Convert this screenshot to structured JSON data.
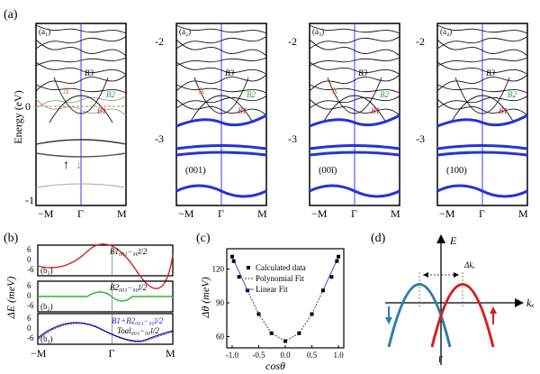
{
  "figure": {
    "panel_a": {
      "label": "(a)",
      "ylabel": "Energy (eV)",
      "left_ticks": [
        "0",
        "-1"
      ],
      "mid_ticks": [
        "-2",
        "-3"
      ],
      "xticks": [
        "−M",
        "Γ",
        "M"
      ],
      "subpanels": [
        {
          "tag": "(a₁)",
          "note": "",
          "delta": "Δ",
          "b3": "B3",
          "b2": "B2",
          "b1": "B1"
        },
        {
          "tag": "(a₂)",
          "note": "(001)",
          "delta": "Δ′",
          "b3": "B3",
          "b2": "B2",
          "b1": "B1"
        },
        {
          "tag": "(a₃)",
          "note": "(00ī)",
          "delta": "Δ′",
          "b3": "B3",
          "b2": "B2",
          "b1": "B1"
        },
        {
          "tag": "(a₄)",
          "note": "(100)",
          "delta": "",
          "b3": "B3",
          "b2": "B2",
          "b1": "B1"
        }
      ]
    },
    "panel_b": {
      "label": "(b)",
      "ylabel": "ΔE (meV)",
      "xticks": [
        "−M",
        "Γ",
        "M"
      ],
      "sub": [
        {
          "tag": "(b₁)",
          "legend": "B1₀₀₁−₀₀ī/2",
          "ticks": [
            "6",
            "0",
            "-6"
          ],
          "color": "#d42020"
        },
        {
          "tag": "(b₂)",
          "legend": "B2₀₀₁−₀₀ī/2",
          "ticks": [
            "6",
            "0",
            "-6"
          ],
          "color": "#22bb22"
        },
        {
          "tag": "(b₃)",
          "legend1": "B1+B2₀₀₁−₀₀ī/2",
          "legend2": "Toal₀₀₁−₀₀ī/2",
          "ticks": [
            "6",
            "0",
            "-6"
          ],
          "color": "#2222cc"
        }
      ]
    },
    "panel_c": {
      "label": "(c)",
      "ylabel": "Δθ (meV)",
      "xlabel": "cosθ",
      "legend": [
        "Calculated data",
        "Polynomial Fit",
        "Linear Fit"
      ]
    },
    "panel_d": {
      "label": "(d)",
      "yaxis": "E",
      "xaxis": "kₓ",
      "shift": "Δkₓ",
      "gamma": "Γ"
    }
  },
  "chart_data": {
    "type": "scatter",
    "xlabel": "cosθ",
    "ylabel": "Δθ (meV)",
    "xlim": [
      -1.1,
      1.1
    ],
    "ylim": [
      50,
      138
    ],
    "xticks": [
      -1.0,
      -0.5,
      0.0,
      0.5,
      1.0
    ],
    "yticks": [
      60,
      90,
      120
    ],
    "series": [
      {
        "name": "Calculated data",
        "x": [
          -1.0,
          -0.97,
          -0.87,
          -0.71,
          -0.5,
          -0.26,
          0.0,
          0.26,
          0.5,
          0.71,
          0.87,
          0.97,
          1.0
        ],
        "y": [
          131,
          127,
          113,
          101,
          80,
          63,
          56,
          63,
          80,
          101,
          113,
          127,
          131
        ]
      },
      {
        "name": "Polynomial Fit",
        "x": [
          -0.71,
          -0.5,
          -0.26,
          0.0,
          0.26,
          0.5,
          0.71
        ],
        "y": [
          101,
          80,
          63,
          56,
          63,
          80,
          101
        ]
      },
      {
        "name": "Linear Fit",
        "x": [
          -1.0,
          -0.71,
          0.71,
          1.0
        ],
        "y": [
          131,
          101,
          101,
          131
        ]
      }
    ]
  }
}
